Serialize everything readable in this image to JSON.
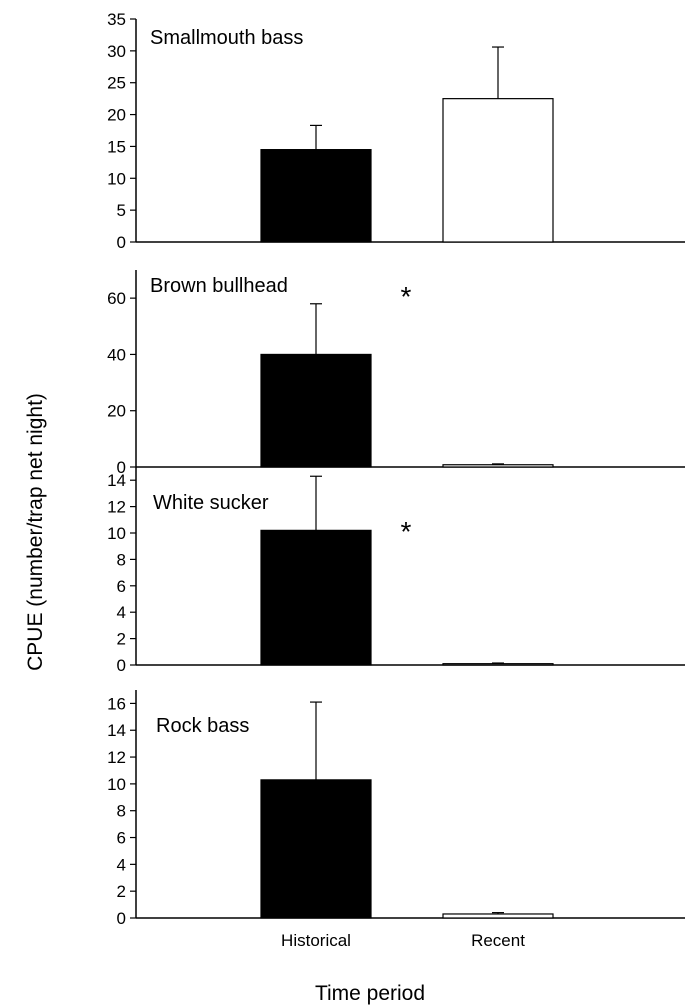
{
  "chart_data": {
    "type": "bar",
    "xlabel": "Time period",
    "ylabel": "CPUE (number/trap net night)",
    "categories": [
      "Historical",
      "Recent"
    ],
    "bar_colors": [
      "#000000",
      "#ffffff"
    ],
    "panels": [
      {
        "title": "Smallmouth bass",
        "values": [
          14.5,
          22.5
        ],
        "errors": [
          3.8,
          8.1
        ],
        "ylim": [
          0,
          35
        ],
        "yticks": [
          0,
          5,
          10,
          15,
          20,
          25,
          30,
          35
        ],
        "significance": ""
      },
      {
        "title": "Brown bullhead",
        "values": [
          40,
          0.8
        ],
        "errors": [
          18,
          0.3
        ],
        "ylim": [
          0,
          70
        ],
        "yticks": [
          0,
          20,
          40,
          60
        ],
        "significance": "*"
      },
      {
        "title": "White sucker",
        "values": [
          10.2,
          0.1
        ],
        "errors": [
          4.1,
          0.05
        ],
        "ylim": [
          0,
          15
        ],
        "yticks": [
          0,
          2,
          4,
          6,
          8,
          10,
          12,
          14
        ],
        "significance": "*"
      },
      {
        "title": "Rock bass",
        "values": [
          10.3,
          0.3
        ],
        "errors": [
          5.8,
          0.1
        ],
        "ylim": [
          0,
          17
        ],
        "yticks": [
          0,
          2,
          4,
          6,
          8,
          10,
          12,
          14,
          16
        ],
        "significance": ""
      }
    ]
  }
}
